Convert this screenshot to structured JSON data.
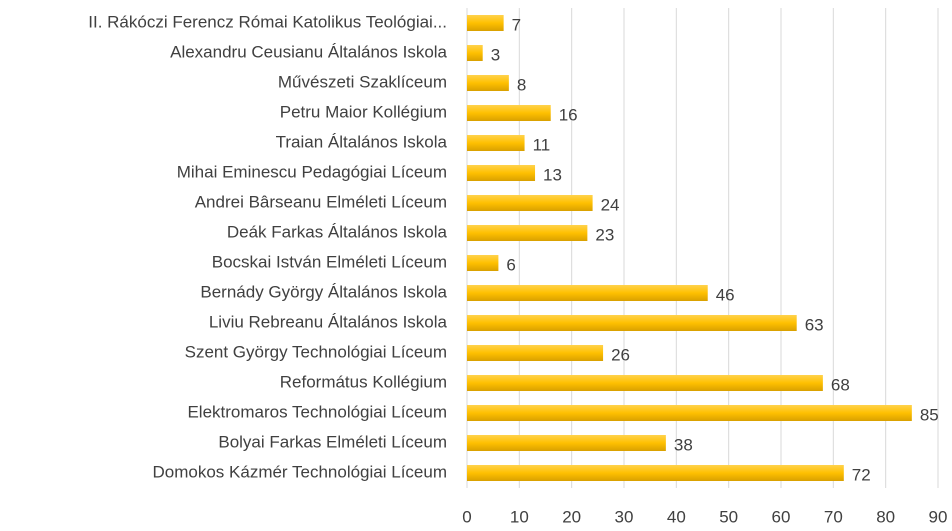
{
  "chart_data": {
    "type": "bar",
    "orientation": "horizontal",
    "categories": [
      "II. Rákóczi Ferencz Római Katolikus Teológiai...",
      "Alexandru Ceusianu Általános Iskola",
      "Művészeti Szaklíceum",
      "Petru Maior Kollégium",
      "Traian Általános Iskola",
      "Mihai Eminescu Pedagógiai Líceum",
      "Andrei Bârseanu Elméleti Líceum",
      "Deák Farkas Általános Iskola",
      "Bocskai István Elméleti Líceum",
      "Bernády György Általános Iskola",
      "Liviu Rebreanu Általános Iskola",
      "Szent György Technológiai Líceum",
      "Református Kollégium",
      "Elektromaros Technológiai Líceum",
      "Bolyai Farkas Elméleti Líceum",
      "Domokos Kázmér Technológiai Líceum"
    ],
    "values": [
      7,
      3,
      8,
      16,
      11,
      13,
      24,
      23,
      6,
      46,
      63,
      26,
      68,
      85,
      38,
      72
    ],
    "color": "#ffc000",
    "xlim": [
      0,
      90
    ],
    "xticks": [
      0,
      10,
      20,
      30,
      40,
      50,
      60,
      70,
      80,
      90
    ],
    "grid": true
  }
}
